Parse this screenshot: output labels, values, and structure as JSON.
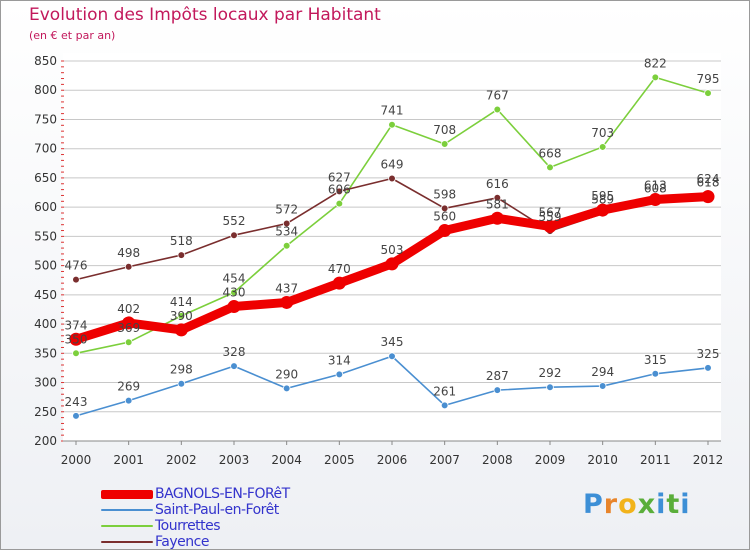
{
  "header": {
    "title": "Evolution des Impôts locaux par Habitant",
    "subtitle": "(en € et par an)"
  },
  "logo": {
    "letters": [
      "P",
      "r",
      "o",
      "x",
      "i",
      "t",
      "i"
    ],
    "colors": [
      "#3d8fd6",
      "#e8842a",
      "#f2b31b",
      "#5aae3a",
      "#3d8fd6",
      "#5aae3a",
      "#3d8fd6"
    ]
  },
  "colors": {
    "title": "#c2185b",
    "axis_text": "#333333",
    "grid": "#c8c8c8",
    "legend_text": "#3333cc"
  },
  "chart_data": {
    "type": "line",
    "title": "Evolution des Impôts locaux par Habitant",
    "subtitle": "(en € et par an)",
    "x": [
      "2000",
      "2001",
      "2002",
      "2003",
      "2004",
      "2005",
      "2006",
      "2007",
      "2008",
      "2009",
      "2010",
      "2011",
      "2012"
    ],
    "ylim": [
      200,
      850
    ],
    "yticks": [
      200,
      250,
      300,
      350,
      400,
      450,
      500,
      550,
      600,
      650,
      700,
      750,
      800,
      850
    ],
    "grid": "horizontal",
    "legend_position": "bottom-left",
    "series": [
      {
        "name": "BAGNOLS-EN-FORêT",
        "color": "#ee0000",
        "values": [
          374,
          402,
          390,
          430,
          437,
          470,
          503,
          560,
          581,
          567,
          595,
          613,
          618
        ],
        "labels": [
          "374",
          "402",
          "390",
          "430",
          "437",
          "470",
          "503",
          "560",
          "581",
          "567",
          "595",
          "613",
          "618"
        ]
      },
      {
        "name": "Saint-Paul-en-Forêt",
        "color": "#4a8fd1",
        "values": [
          243,
          269,
          298,
          328,
          290,
          314,
          345,
          261,
          287,
          292,
          294,
          315,
          325
        ],
        "labels": [
          "243",
          "269",
          "298",
          "328",
          "290",
          "314",
          "345",
          "261",
          "287",
          "292",
          "294",
          "315",
          "325"
        ]
      },
      {
        "name": "Tourrettes",
        "color": "#7ccf3c",
        "values": [
          350,
          369,
          414,
          454,
          534,
          606,
          741,
          708,
          767,
          668,
          703,
          822,
          795
        ],
        "labels": [
          "350",
          "369",
          "414",
          "454",
          "534",
          "606",
          "741",
          "708",
          "767",
          "668",
          "703",
          "822",
          "795"
        ]
      },
      {
        "name": "Fayence",
        "color": "#7a2e2e",
        "values": [
          476,
          498,
          518,
          552,
          572,
          627,
          649,
          598,
          616,
          559,
          589,
          608,
          624
        ],
        "labels": [
          "476",
          "498",
          "518",
          "552",
          "572",
          "627",
          "649",
          "598",
          "616",
          "559",
          "589",
          "608",
          "624"
        ]
      }
    ]
  }
}
